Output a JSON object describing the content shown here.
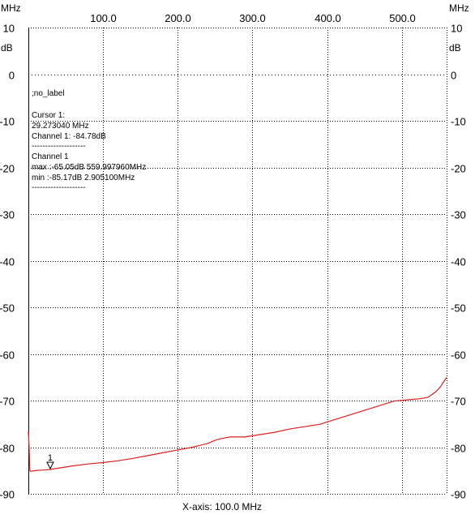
{
  "x_unit_label": "MHz",
  "left_unit_label": "dB",
  "right_top_label": "MHz",
  "right_unit_label": "dB",
  "xaxis_caption": "X-axis: 100.0 MHz",
  "info": {
    "label": ";no_label",
    "cursor_title": "Cursor 1:",
    "cursor_freq": "29.273040 MHz",
    "cursor_value": "Channel 1: -84.78dB",
    "separator": "--------------------",
    "channel_title": "Channel 1",
    "max_line": "max :-65.05dB 559.997960MHz",
    "min_line": "min :-85.17dB 2.905100MHz"
  },
  "marker_label": "1",
  "colors": {
    "trace": "#dd1f1f",
    "grid": "#000000",
    "zero_line": "#000000"
  },
  "chart_data": {
    "type": "line",
    "title": "",
    "xlabel": "X-axis: 100.0 MHz",
    "ylabel": "dB",
    "xlim": [
      0,
      560
    ],
    "ylim": [
      -90,
      10
    ],
    "xticks": [
      100.0,
      200.0,
      300.0,
      400.0,
      500.0
    ],
    "xtick_labels": [
      "100.0",
      "200.0",
      "300.0",
      "400.0",
      "500.0"
    ],
    "yticks": [
      10,
      0,
      -10,
      -20,
      -30,
      -40,
      -50,
      -60,
      -70,
      -80,
      -90
    ],
    "ytick_labels": [
      "10",
      "0",
      "-10",
      "-20",
      "-30",
      "-40",
      "-50",
      "-60",
      "-70",
      "-80",
      "-90"
    ],
    "grid": true,
    "cursor": {
      "x": 29.27304,
      "y": -84.78,
      "label": "1"
    },
    "series": [
      {
        "name": "Channel 1",
        "points": [
          [
            0,
            -76.5
          ],
          [
            1,
            -80
          ],
          [
            2,
            -85.0
          ],
          [
            2.9,
            -85.17
          ],
          [
            10,
            -85.0
          ],
          [
            20,
            -84.9
          ],
          [
            29.3,
            -84.78
          ],
          [
            40,
            -84.5
          ],
          [
            60,
            -84.0
          ],
          [
            80,
            -83.6
          ],
          [
            100,
            -83.3
          ],
          [
            120,
            -82.9
          ],
          [
            140,
            -82.4
          ],
          [
            160,
            -81.8
          ],
          [
            180,
            -81.2
          ],
          [
            200,
            -80.6
          ],
          [
            220,
            -80.0
          ],
          [
            240,
            -79.2
          ],
          [
            252,
            -78.4
          ],
          [
            260,
            -78.1
          ],
          [
            270,
            -77.8
          ],
          [
            290,
            -77.8
          ],
          [
            310,
            -77.3
          ],
          [
            330,
            -76.8
          ],
          [
            350,
            -76.1
          ],
          [
            370,
            -75.6
          ],
          [
            390,
            -75.1
          ],
          [
            410,
            -74.1
          ],
          [
            430,
            -73.1
          ],
          [
            450,
            -72.1
          ],
          [
            470,
            -71.1
          ],
          [
            490,
            -70.1
          ],
          [
            510,
            -69.8
          ],
          [
            525,
            -69.6
          ],
          [
            535,
            -69.3
          ],
          [
            545,
            -68.2
          ],
          [
            552,
            -67.0
          ],
          [
            556,
            -66.0
          ],
          [
            560,
            -65.05
          ]
        ]
      }
    ]
  }
}
